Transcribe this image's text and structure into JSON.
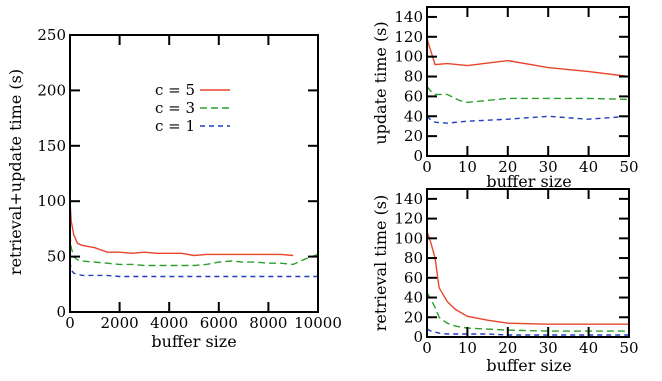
{
  "chart_data": [
    {
      "id": "main",
      "type": "line",
      "title": "",
      "xlabel": "buffer size",
      "ylabel": "retrieval+update time (s)",
      "xlim": [
        0,
        10000
      ],
      "ylim": [
        0,
        250
      ],
      "xticks": [
        0,
        2000,
        4000,
        6000,
        8000,
        10000
      ],
      "yticks": [
        0,
        50,
        100,
        150,
        200,
        250
      ],
      "grid": false,
      "legend_position": "upper-middle",
      "series": [
        {
          "name": "c = 5",
          "color": "#e8452a",
          "dash": "solid",
          "x": [
            0,
            50,
            150,
            300,
            500,
            1000,
            1500,
            2000,
            2500,
            3000,
            3500,
            4000,
            4500,
            5000,
            5500,
            6000,
            6500,
            7000,
            7500,
            8000,
            8500,
            9000
          ],
          "y": [
            100,
            82,
            70,
            62,
            60,
            58,
            54,
            54,
            53,
            54,
            53,
            53,
            53,
            51,
            52,
            52,
            52,
            52,
            52,
            52,
            52,
            51
          ]
        },
        {
          "name": "c = 3",
          "color": "#2ca02c",
          "dash": "dashed",
          "x": [
            0,
            50,
            150,
            300,
            500,
            1000,
            1500,
            2000,
            2500,
            3000,
            3500,
            4000,
            4500,
            5000,
            5500,
            6000,
            6500,
            7000,
            7500,
            8000,
            8500,
            9000,
            9500,
            10000
          ],
          "y": [
            70,
            58,
            50,
            47,
            46,
            45,
            44,
            43,
            43,
            42,
            42,
            42,
            42,
            42,
            43,
            45,
            46,
            45,
            45,
            44,
            44,
            43,
            48,
            52
          ]
        },
        {
          "name": "c = 1",
          "color": "#1f3fbf",
          "dash": "dashed",
          "x": [
            0,
            50,
            150,
            300,
            500,
            1000,
            1500,
            2000,
            2500,
            3000,
            3500,
            4000,
            4500,
            5000,
            5500,
            6000,
            6500,
            7000,
            7500,
            8000,
            8500,
            9000,
            9500,
            10000
          ],
          "y": [
            45,
            38,
            35,
            34,
            33,
            33,
            33,
            32,
            32,
            32,
            32,
            32,
            32,
            32,
            32,
            32,
            32,
            32,
            32,
            32,
            32,
            32,
            32,
            32
          ]
        }
      ]
    },
    {
      "id": "update",
      "type": "line",
      "title": "",
      "xlabel": "buffer size",
      "ylabel": "update time (s)",
      "xlim": [
        0,
        50
      ],
      "ylim": [
        0,
        150
      ],
      "xticks": [
        0,
        10,
        20,
        30,
        40,
        50
      ],
      "yticks": [
        0,
        20,
        40,
        60,
        80,
        100,
        120,
        140
      ],
      "grid": false,
      "series": [
        {
          "name": "c = 5",
          "color": "#e8452a",
          "dash": "solid",
          "x": [
            0,
            1,
            2,
            5,
            10,
            20,
            30,
            40,
            50
          ],
          "y": [
            118,
            105,
            92,
            93,
            91,
            96,
            89,
            85,
            80
          ]
        },
        {
          "name": "c = 3",
          "color": "#2ca02c",
          "dash": "dashed",
          "x": [
            0,
            1,
            2,
            5,
            8,
            10,
            20,
            30,
            40,
            50
          ],
          "y": [
            70,
            65,
            62,
            62,
            56,
            54,
            58,
            58,
            58,
            57
          ]
        },
        {
          "name": "c = 1",
          "color": "#1f3fbf",
          "dash": "dashed",
          "x": [
            0,
            1,
            2,
            5,
            10,
            20,
            30,
            40,
            50
          ],
          "y": [
            40,
            36,
            34,
            33,
            35,
            37,
            40,
            37,
            40
          ]
        }
      ]
    },
    {
      "id": "retrieval",
      "type": "line",
      "title": "",
      "xlabel": "buffer size",
      "ylabel": "retrieval time (s)",
      "xlim": [
        0,
        50
      ],
      "ylim": [
        0,
        150
      ],
      "xticks": [
        0,
        10,
        20,
        30,
        40,
        50
      ],
      "yticks": [
        0,
        20,
        40,
        60,
        80,
        100,
        120,
        140
      ],
      "grid": false,
      "series": [
        {
          "name": "c = 5",
          "color": "#e8452a",
          "dash": "solid",
          "x": [
            0,
            1,
            2,
            3,
            5,
            7,
            10,
            15,
            20,
            30,
            40,
            50
          ],
          "y": [
            107,
            95,
            80,
            50,
            36,
            28,
            21,
            17,
            14,
            13,
            13,
            13
          ]
        },
        {
          "name": "c = 3",
          "color": "#2ca02c",
          "dash": "dashed",
          "x": [
            0,
            1,
            2,
            3,
            5,
            7,
            10,
            15,
            20,
            30,
            40,
            50
          ],
          "y": [
            45,
            38,
            30,
            20,
            14,
            11,
            9,
            8,
            7,
            6,
            6,
            6
          ]
        },
        {
          "name": "c = 1",
          "color": "#1f3fbf",
          "dash": "dashed",
          "x": [
            0,
            1,
            2,
            3,
            5,
            7,
            10,
            15,
            20,
            30,
            40,
            50
          ],
          "y": [
            8,
            6,
            5,
            4,
            3,
            3,
            3,
            3,
            2,
            2,
            2,
            2
          ]
        }
      ]
    }
  ]
}
